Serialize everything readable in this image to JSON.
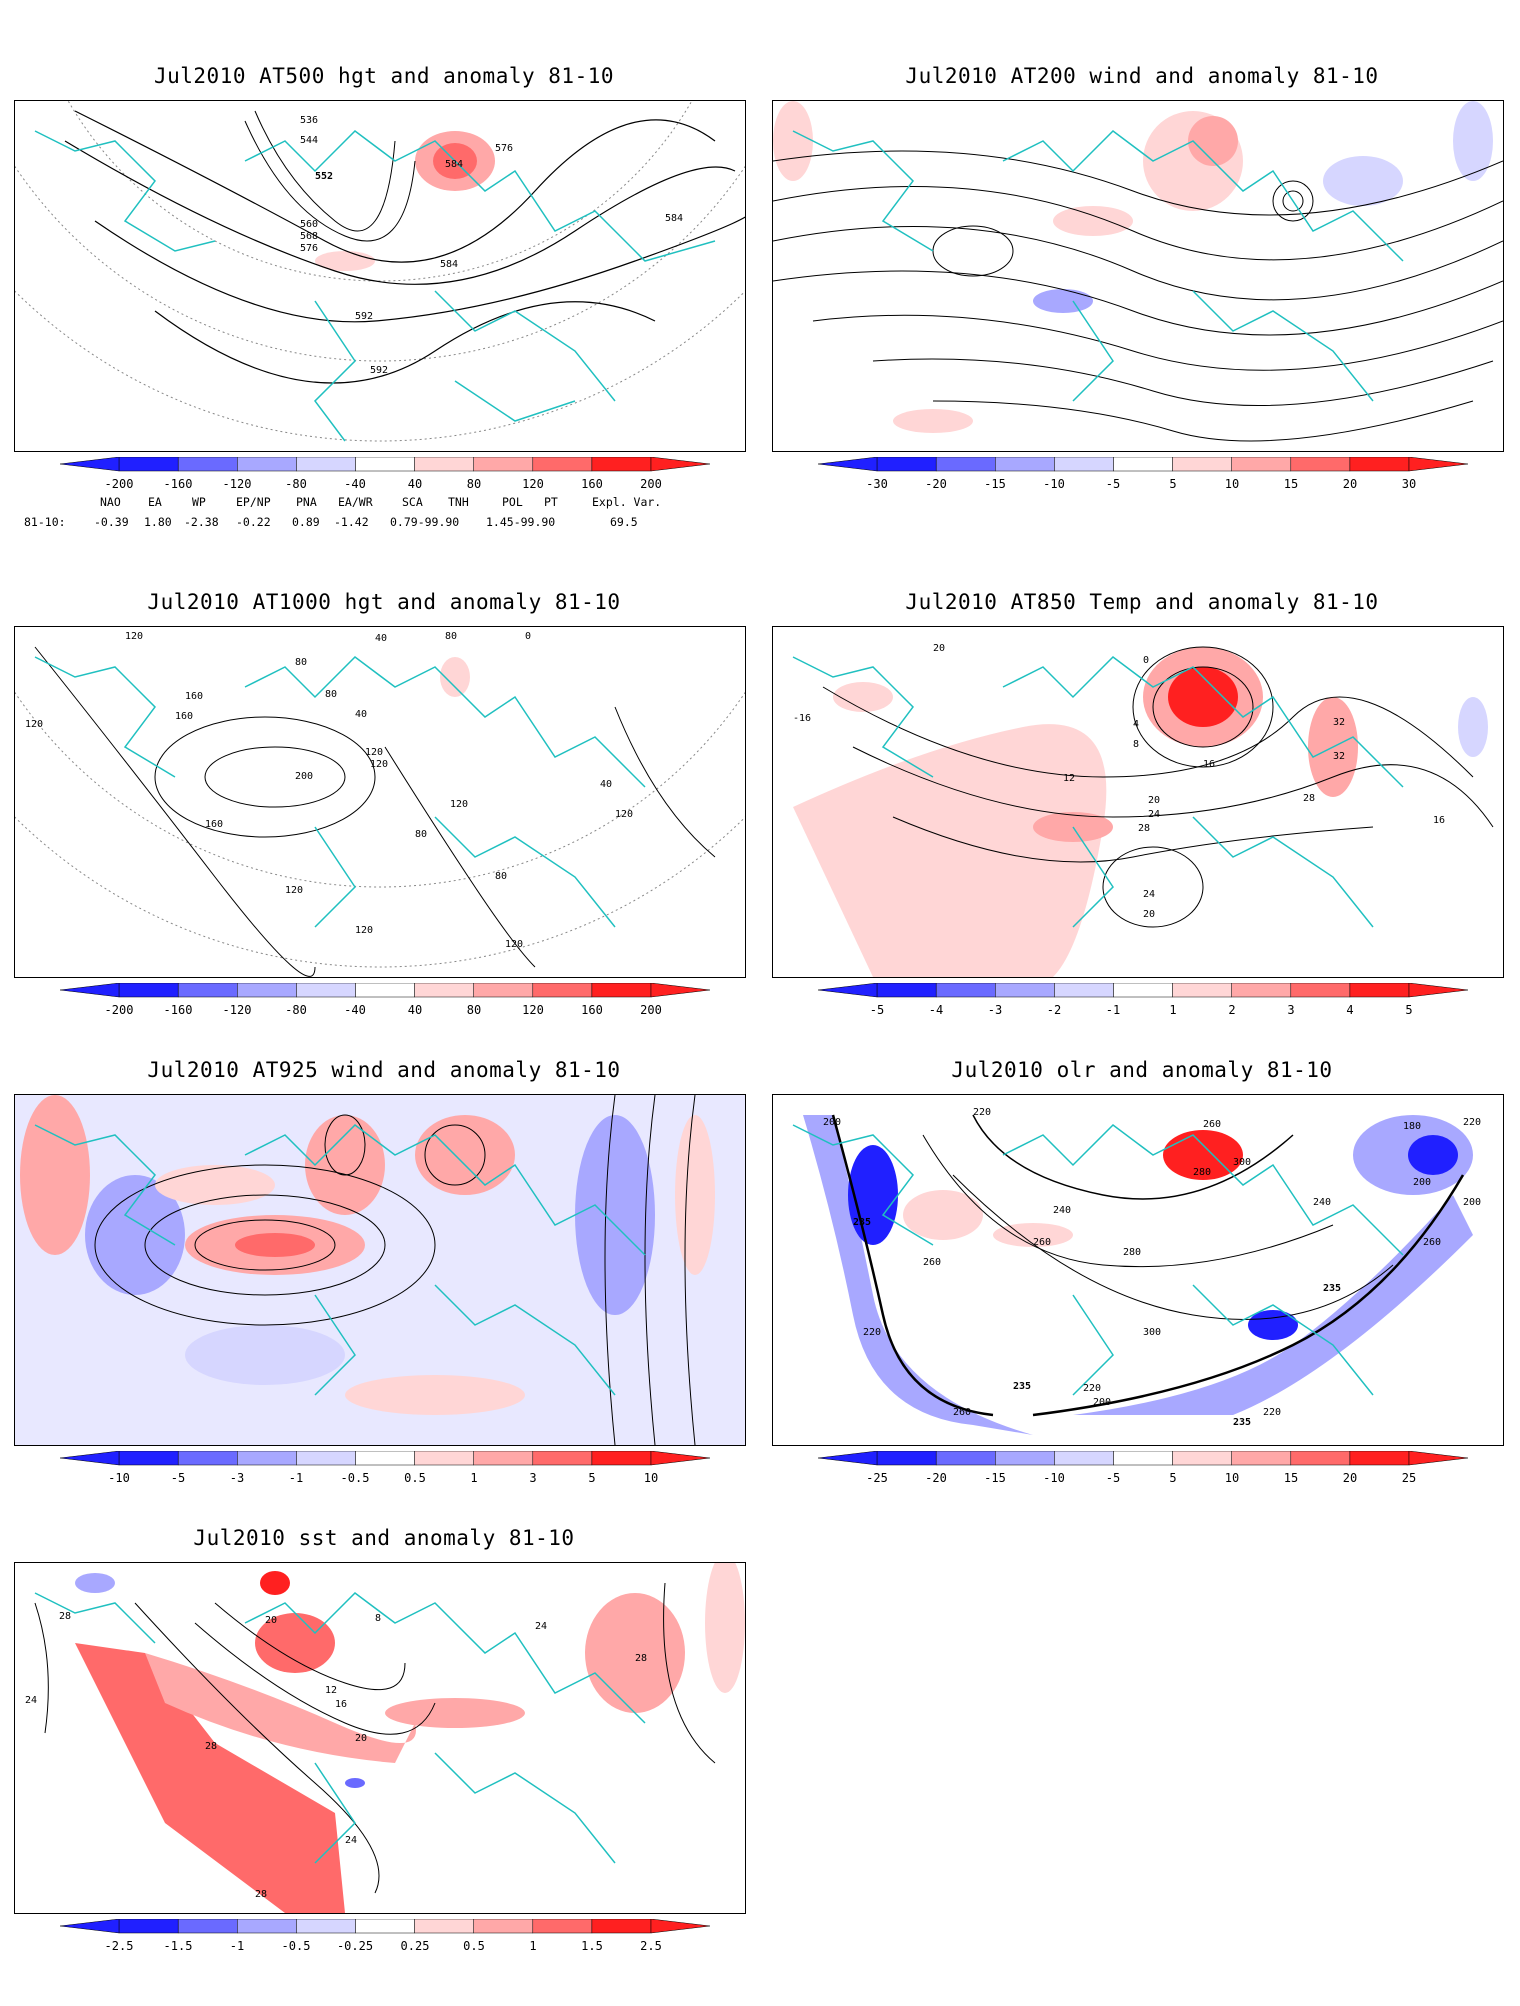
{
  "colors": {
    "coast": "#20c0c0",
    "contour": "#000000",
    "grid": "#888888",
    "blue_dark": "#2020ff",
    "blue_mid": "#6a6aff",
    "blue_light": "#a8a8ff",
    "blue_pale": "#d6d6ff",
    "red_pale": "#ffd6d6",
    "red_light": "#ffa8a8",
    "red_mid": "#ff6a6a",
    "red_dark": "#ff2020"
  },
  "panels": [
    {
      "id": "p500",
      "title": "Jul2010 AT500 hgt and anomaly 81-10",
      "colorbar": [
        "-200",
        "-160",
        "-120",
        "-80",
        "-40",
        "40",
        "80",
        "120",
        "160",
        "200"
      ],
      "contour_labels": [
        "536",
        "544",
        "552",
        "560",
        "568",
        "576",
        "584",
        "576",
        "584",
        "584",
        "592",
        "592"
      ]
    },
    {
      "id": "p200",
      "title": "Jul2010 AT200 wind and anomaly 81-10",
      "colorbar": [
        "-30",
        "-20",
        "-15",
        "-10",
        "-5",
        "5",
        "10",
        "15",
        "20",
        "30"
      ],
      "contour_labels": []
    },
    {
      "id": "p1000",
      "title": "Jul2010 AT1000 hgt and anomaly 81-10",
      "colorbar": [
        "-200",
        "-160",
        "-120",
        "-80",
        "-40",
        "40",
        "80",
        "120",
        "160",
        "200"
      ],
      "contour_labels": [
        "120",
        "120",
        "40",
        "80",
        "0",
        "80",
        "160",
        "80",
        "40",
        "160",
        "120",
        "200",
        "120",
        "40",
        "160",
        "80",
        "120",
        "120",
        "80",
        "120",
        "120",
        "120"
      ]
    },
    {
      "id": "p850",
      "title": "Jul2010 AT850 Temp and anomaly 81-10",
      "colorbar": [
        "-5",
        "-4",
        "-3",
        "-2",
        "-1",
        "1",
        "2",
        "3",
        "4",
        "5"
      ],
      "contour_labels": [
        "-16",
        "20",
        "0",
        "4",
        "8",
        "12",
        "16",
        "20",
        "24",
        "28",
        "32",
        "32",
        "28",
        "16",
        "24",
        "20"
      ]
    },
    {
      "id": "p925",
      "title": "Jul2010 AT925 wind and anomaly 81-10",
      "colorbar": [
        "-10",
        "-5",
        "-3",
        "-1",
        "-0.5",
        "0.5",
        "1",
        "3",
        "5",
        "10"
      ],
      "contour_labels": []
    },
    {
      "id": "polr",
      "title": "Jul2010 olr and anomaly 81-10",
      "colorbar": [
        "-25",
        "-20",
        "-15",
        "-10",
        "-5",
        "5",
        "10",
        "15",
        "20",
        "25"
      ],
      "contour_labels": [
        "200",
        "235",
        "220",
        "260",
        "220",
        "240",
        "260",
        "280",
        "300",
        "180",
        "220",
        "200",
        "200",
        "260",
        "235",
        "280",
        "300",
        "260",
        "235",
        "200",
        "220",
        "260",
        "220",
        "235",
        "240"
      ]
    },
    {
      "id": "psst",
      "title": "Jul2010 sst and anomaly 81-10",
      "colorbar": [
        "-2.5",
        "-1.5",
        "-1",
        "-0.5",
        "-0.25",
        "0.25",
        "0.5",
        "1",
        "1.5",
        "2.5"
      ],
      "contour_labels": [
        "28",
        "24",
        "20",
        "8",
        "12",
        "16",
        "20",
        "28",
        "24",
        "24",
        "28",
        "28"
      ]
    }
  ],
  "teleconnection": {
    "headers": [
      "NAO",
      "EA",
      "WP",
      "EP/NP",
      "PNA",
      "EA/WR",
      "SCA",
      "TNH",
      "POL",
      "PT",
      "Expl. Var."
    ],
    "row_label": "81-10:",
    "values": [
      "-0.39",
      "1.80",
      "-2.38",
      "-0.22",
      "0.89",
      "-1.42",
      "0.79-99.90",
      "1.45-99.90",
      "69.5"
    ]
  }
}
